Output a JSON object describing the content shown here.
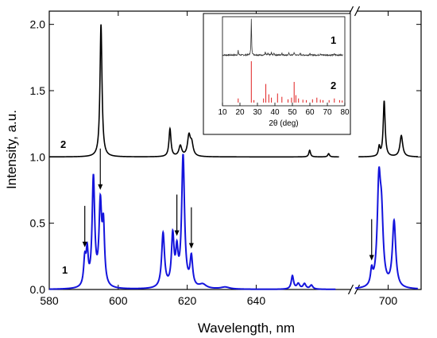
{
  "chart_data": {
    "type": "line",
    "xlabel": "Wavelength, nm",
    "ylabel": "Intensity, a.u.",
    "ylim": [
      0,
      2.1
    ],
    "x_segments": [
      {
        "range": [
          580,
          668
        ],
        "ticks": [
          580,
          600,
          620,
          640
        ]
      },
      {
        "range": [
          690,
          710
        ],
        "ticks": [
          700
        ]
      }
    ],
    "y_ticks": [
      "0.0",
      "0.5",
      "1.0",
      "1.5",
      "2.0"
    ],
    "series": [
      {
        "name": "1",
        "color": "#1414dc",
        "offset": 0,
        "peaks": [
          [
            590.3,
            0.2,
            0.4
          ],
          [
            591.0,
            0.24,
            0.35
          ],
          [
            592.8,
            0.82,
            0.45
          ],
          [
            594.8,
            0.6,
            0.45
          ],
          [
            595.7,
            0.43,
            0.4
          ],
          [
            613.0,
            0.41,
            0.5
          ],
          [
            615.8,
            0.38,
            0.45
          ],
          [
            617.0,
            0.24,
            0.4
          ],
          [
            618.8,
            0.99,
            0.5
          ],
          [
            621.2,
            0.22,
            0.45
          ],
          [
            624.5,
            0.03,
            1.2
          ],
          [
            631.0,
            0.015,
            1.5
          ],
          [
            650.5,
            0.1,
            0.4
          ],
          [
            652.2,
            0.04,
            0.5
          ],
          [
            654.0,
            0.04,
            0.5
          ],
          [
            656.0,
            0.03,
            0.5
          ],
          [
            695.0,
            0.11,
            0.4
          ],
          [
            697.2,
            0.74,
            0.6
          ],
          [
            698.0,
            0.45,
            0.6
          ],
          [
            701.8,
            0.5,
            0.6
          ]
        ]
      },
      {
        "name": "2",
        "color": "#000000",
        "offset": 1.0,
        "peaks": [
          [
            595.0,
            1.0,
            0.35
          ],
          [
            615.0,
            0.21,
            0.35
          ],
          [
            618.0,
            0.08,
            0.5
          ],
          [
            620.5,
            0.15,
            0.5
          ],
          [
            621.3,
            0.09,
            0.5
          ],
          [
            655.5,
            0.05,
            0.3
          ],
          [
            661.0,
            0.025,
            0.3
          ],
          [
            697.3,
            0.07,
            0.3
          ],
          [
            698.8,
            0.42,
            0.35
          ],
          [
            704.0,
            0.16,
            0.5
          ]
        ]
      }
    ],
    "labels": [
      "1",
      "2"
    ],
    "arrows_at_nm": [
      590.3,
      594.8,
      617.0,
      621.2,
      695.0
    ],
    "inset": {
      "title": "2θ (deg)",
      "xlim": [
        10,
        80
      ],
      "x_ticks": [
        10,
        20,
        30,
        40,
        50,
        60,
        70,
        80
      ],
      "labels": [
        "1",
        "2"
      ],
      "curve_1_peaks": [
        [
          19.0,
          0.12
        ],
        [
          26.5,
          1.0
        ],
        [
          34.5,
          0.08
        ],
        [
          36.0,
          0.05
        ],
        [
          38.0,
          0.07
        ],
        [
          39.5,
          0.06
        ],
        [
          44.0,
          0.06
        ],
        [
          48.0,
          0.05
        ],
        [
          51.0,
          0.08
        ],
        [
          54.5,
          0.05
        ],
        [
          60.0,
          0.04
        ],
        [
          66.0,
          0.04
        ],
        [
          74.0,
          0.03
        ]
      ],
      "curve_2_sticks": [
        [
          19.0,
          0.1
        ],
        [
          26.5,
          1.0
        ],
        [
          28.0,
          0.06
        ],
        [
          33.5,
          0.1
        ],
        [
          34.8,
          0.45
        ],
        [
          36.5,
          0.2
        ],
        [
          38.0,
          0.12
        ],
        [
          41.5,
          0.22
        ],
        [
          44.0,
          0.14
        ],
        [
          47.5,
          0.08
        ],
        [
          49.5,
          0.12
        ],
        [
          51.0,
          0.5
        ],
        [
          52.0,
          0.18
        ],
        [
          53.5,
          0.1
        ],
        [
          56.0,
          0.07
        ],
        [
          58.0,
          0.06
        ],
        [
          61.5,
          0.08
        ],
        [
          64.0,
          0.12
        ],
        [
          66.0,
          0.07
        ],
        [
          67.5,
          0.06
        ],
        [
          71.0,
          0.06
        ],
        [
          74.0,
          0.1
        ],
        [
          77.0,
          0.06
        ],
        [
          78.5,
          0.05
        ]
      ]
    }
  }
}
